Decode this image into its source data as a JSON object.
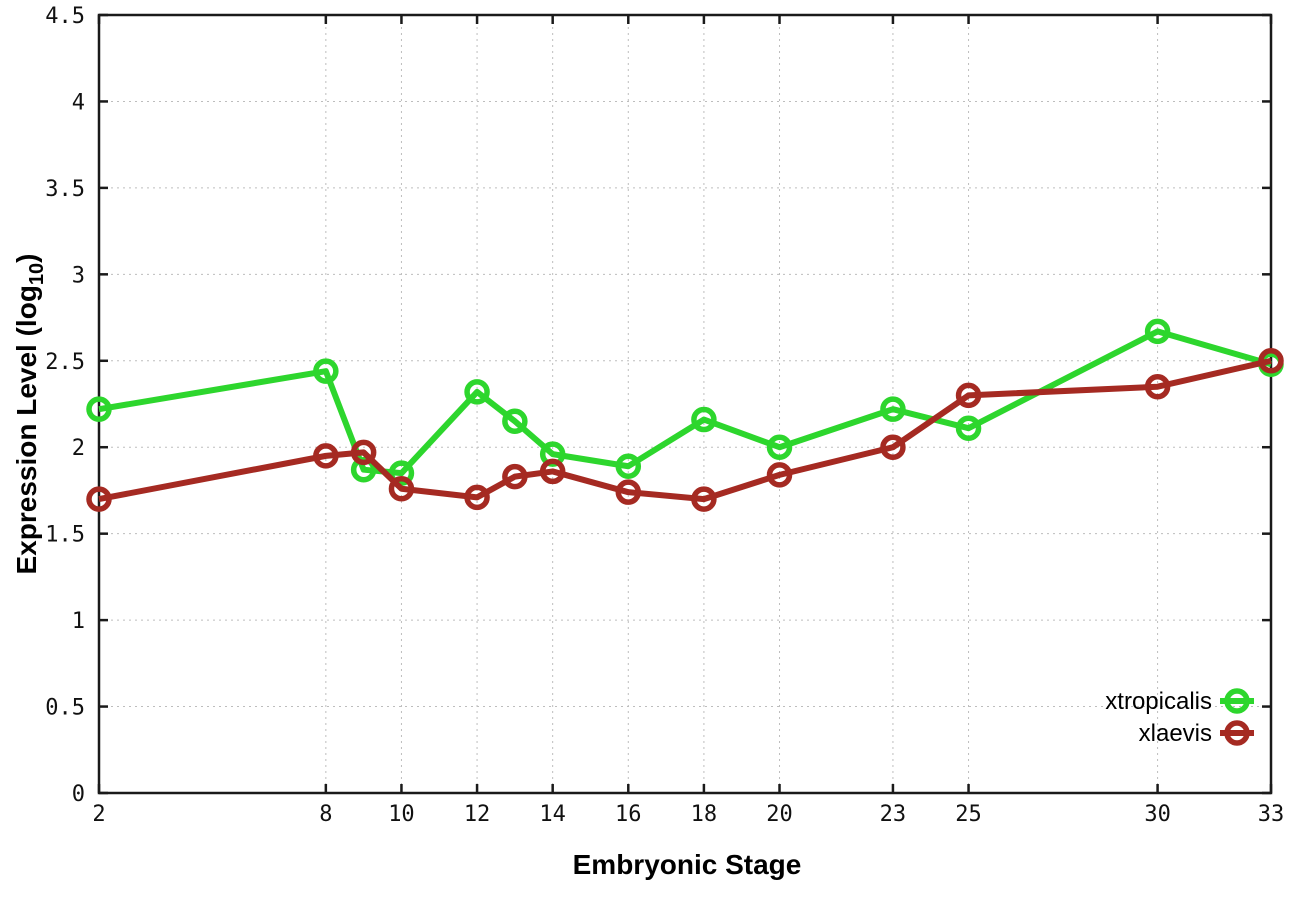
{
  "chart_data": {
    "type": "line",
    "title": "",
    "xlabel": "Embryonic Stage",
    "ylabel": {
      "text": "Expression Level (log",
      "sub": "10",
      "after": ")"
    },
    "xlim": [
      2,
      33
    ],
    "ylim": [
      0,
      4.5
    ],
    "grid": true,
    "legend_position": "inside-bottom-right",
    "xticks": [
      {
        "v": 2,
        "label": "2"
      },
      {
        "v": 8,
        "label": "8"
      },
      {
        "v": 10,
        "label": "10"
      },
      {
        "v": 12,
        "label": "12"
      },
      {
        "v": 14,
        "label": "14"
      },
      {
        "v": 16,
        "label": "16"
      },
      {
        "v": 18,
        "label": "18"
      },
      {
        "v": 20,
        "label": "20"
      },
      {
        "v": 23,
        "label": "23"
      },
      {
        "v": 25,
        "label": "25"
      },
      {
        "v": 30,
        "label": "30"
      },
      {
        "v": 33,
        "label": "33"
      }
    ],
    "yticks": [
      {
        "v": 0,
        "label": "0"
      },
      {
        "v": 0.5,
        "label": "0.5"
      },
      {
        "v": 1,
        "label": "1"
      },
      {
        "v": 1.5,
        "label": "1.5"
      },
      {
        "v": 2,
        "label": "2"
      },
      {
        "v": 2.5,
        "label": "2.5"
      },
      {
        "v": 3,
        "label": "3"
      },
      {
        "v": 3.5,
        "label": "3.5"
      },
      {
        "v": 4,
        "label": "4"
      },
      {
        "v": 4.5,
        "label": "4.5"
      }
    ],
    "x": [
      2,
      8,
      9,
      10,
      12,
      13,
      14,
      16,
      18,
      20,
      23,
      25,
      30,
      33
    ],
    "series": [
      {
        "name": "xtropicalis",
        "color": "#2dd62d",
        "marker": "open-circle",
        "values": [
          2.22,
          2.44,
          1.87,
          1.85,
          2.32,
          2.15,
          1.96,
          1.89,
          2.16,
          2.0,
          2.22,
          2.11,
          2.67,
          2.48
        ]
      },
      {
        "name": "xlaevis",
        "color": "#a52a22",
        "marker": "open-circle",
        "values": [
          1.7,
          1.95,
          1.97,
          1.76,
          1.71,
          1.83,
          1.86,
          1.74,
          1.7,
          1.84,
          2.0,
          2.3,
          2.35,
          2.5
        ]
      }
    ],
    "colors": {
      "border": "#1a1a1a",
      "grid": "#bdbdbd",
      "background": "#ffffff"
    }
  }
}
